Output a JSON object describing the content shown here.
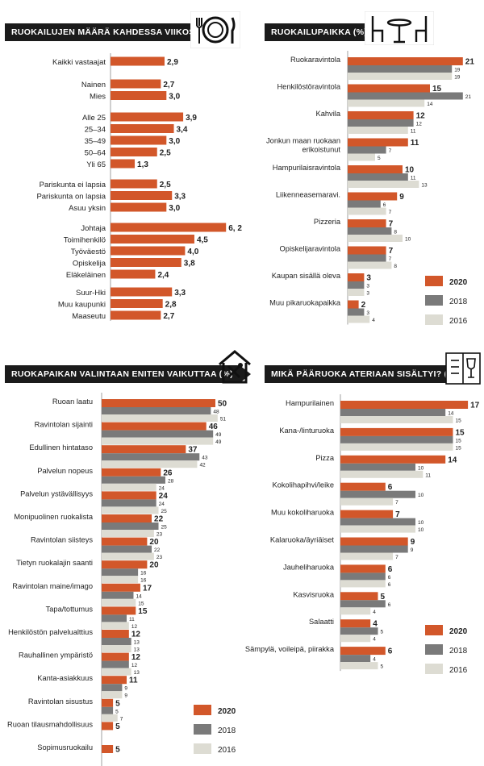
{
  "colors": {
    "y2020": "#d2572a",
    "y2018": "#7a7a7a",
    "y2016": "#dddcd3",
    "title_bg": "#1b1b1b"
  },
  "icons": {
    "p1": "plate-fork-knife-icon",
    "p2": "table-chairs-icon",
    "p3": "house-cutlery-icon",
    "p4": "menu-wine-icon"
  },
  "chart_data": [
    {
      "type": "bar",
      "title": "RUOKAILUJEN MÄÄRÄ KAHDESSA VIIKOSSA",
      "orientation": "horizontal",
      "groups": [
        [
          "Kaikki vastaajat"
        ],
        [
          "Nainen",
          "Mies"
        ],
        [
          "Alle 25",
          "25–34",
          "35–49",
          "50–64",
          "Yli 65"
        ],
        [
          "Pariskunta ei lapsia",
          "Pariskunta on lapsia",
          "Asuu yksin"
        ],
        [
          "Johtaja",
          "Toimihenkilö",
          "Työväestö",
          "Opiskelija",
          "Eläkeläinen"
        ],
        [
          "Suur-Hki",
          "Muu kaupunki",
          "Maaseutu"
        ]
      ],
      "values": [
        [
          2.9
        ],
        [
          2.7,
          3.0
        ],
        [
          3.9,
          3.4,
          3.0,
          2.5,
          1.3
        ],
        [
          2.5,
          3.3,
          3.0
        ],
        [
          6.2,
          4.5,
          4.0,
          3.8,
          2.4
        ],
        [
          3.3,
          2.8,
          2.7
        ]
      ],
      "labels": [
        [
          "2,9"
        ],
        [
          "2,7",
          "3,0"
        ],
        [
          "3,9",
          "3,4",
          "3,0",
          "2,5",
          "1,3"
        ],
        [
          "2,5",
          "3,3",
          "3,0"
        ],
        [
          "6, 2",
          "4,5",
          "4,0",
          "3,8",
          "2,4"
        ],
        [
          "3,3",
          "2,8",
          "2,7"
        ]
      ]
    },
    {
      "type": "bar",
      "title": "RUOKAILUPAIKKA (%)",
      "orientation": "horizontal",
      "categories": [
        "Ruokaravintola",
        "Henkilöstöravintola",
        "Kahvila",
        "Jonkun maan ruokaan erikoistunut",
        "Hampurilaisravintola",
        "Liikenneasemaravi.",
        "Pizzeria",
        "Opiskelijaravintola",
        "Kaupan sisällä oleva",
        "Muu pikaruokapaikka"
      ],
      "series": [
        {
          "name": "2020",
          "values": [
            21,
            15,
            12,
            11,
            10,
            9,
            7,
            7,
            3,
            2
          ]
        },
        {
          "name": "2018",
          "values": [
            19,
            21,
            12,
            7,
            11,
            6,
            8,
            7,
            3,
            3
          ]
        },
        {
          "name": "2016",
          "values": [
            19,
            14,
            11,
            5,
            13,
            7,
            10,
            8,
            3,
            4
          ]
        }
      ]
    },
    {
      "type": "bar",
      "title": "RUOKAPAIKAN VALINTAAN ENITEN VAIKUTTAA (%)",
      "orientation": "horizontal",
      "categories": [
        "Ruoan laatu",
        "Ravintolan sijainti",
        "Edullinen hintataso",
        "Palvelun nopeus",
        "Palvelun ystävällisyys",
        "Monipuolinen ruokalista",
        "Ravintolan siisteys",
        "Tietyn ruokalajin saanti",
        "Ravintolan maine/imago",
        "Tapa/tottumus",
        "Henkilöstön palvelualttius",
        "Rauhallinen ympäristö",
        "Kanta-asiakkuus",
        "Ravintolan sisustus",
        "Ruoan tilausmahdollisuus",
        "Sopimusruokailu"
      ],
      "series": [
        {
          "name": "2020",
          "values": [
            50,
            46,
            37,
            26,
            24,
            22,
            20,
            20,
            17,
            15,
            12,
            12,
            11,
            5,
            5,
            5
          ]
        },
        {
          "name": "2018",
          "values": [
            48,
            49,
            43,
            28,
            24,
            25,
            22,
            16,
            14,
            11,
            13,
            12,
            9,
            5,
            null,
            null
          ]
        },
        {
          "name": "2016",
          "values": [
            51,
            49,
            42,
            24,
            25,
            23,
            23,
            16,
            15,
            12,
            13,
            13,
            9,
            7,
            null,
            null
          ]
        }
      ]
    },
    {
      "type": "bar",
      "title": "MIKÄ PÄÄRUOKA ATERIAAN SISÄLTYI? (%)-",
      "orientation": "horizontal",
      "categories": [
        "Hampurilainen",
        "Kana-/linturuoka",
        "Pizza",
        "Kokolihapihvi/leike",
        "Muu kokoliharuoka",
        "Kalaruoka/äyriäiset",
        "Jauheliharuoka",
        "Kasvisruoka",
        "Salaatti",
        "Sämpylä, voileipä, piirakka"
      ],
      "series": [
        {
          "name": "2020",
          "values": [
            17,
            15,
            14,
            6,
            7,
            9,
            6,
            5,
            4,
            6
          ]
        },
        {
          "name": "2018",
          "values": [
            14,
            15,
            10,
            10,
            10,
            9,
            6,
            6,
            5,
            4
          ]
        },
        {
          "name": "2016",
          "values": [
            15,
            15,
            11,
            7,
            10,
            7,
            6,
            4,
            4,
            5
          ]
        }
      ]
    }
  ],
  "legend": [
    "2020",
    "2018",
    "2016"
  ]
}
